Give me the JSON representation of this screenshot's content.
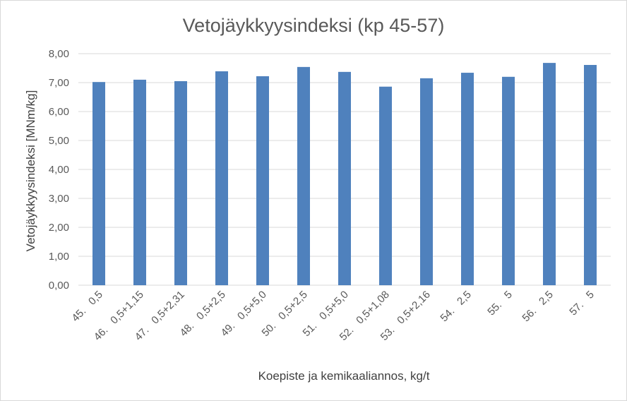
{
  "chart_data": {
    "type": "bar",
    "title": "Vetojäykkyysindeksi  (kp 45-57)",
    "xlabel": "Koepiste ja kemikaaliannos, kg/t",
    "ylabel": "Vetojäykkyysindeksi [MNm/kg]",
    "ylim": [
      0,
      8
    ],
    "yticks": [
      "0,00",
      "1,00",
      "2,00",
      "3,00",
      "4,00",
      "5,00",
      "6,00",
      "7,00",
      "8,00"
    ],
    "grid": true,
    "legend": "none",
    "categories": [
      "45.   0,5",
      "46.   0,5+1,15",
      "47.   0,5+2,31",
      "48.   0,5+2,5",
      "49.   0,5+5,0",
      "50.   0,5+2,5",
      "51.   0,5+5,0",
      "52.   0,5+1,08",
      "53.   0,5+2,16",
      "54.   2,5",
      "55.   5",
      "56.   2,5",
      "57.   5"
    ],
    "values": [
      7.02,
      7.1,
      7.05,
      7.39,
      7.22,
      7.54,
      7.37,
      6.86,
      7.15,
      7.34,
      7.2,
      7.68,
      7.61
    ],
    "colors": {
      "bar": "#4f81bd",
      "grid": "#d9d9d9"
    }
  }
}
